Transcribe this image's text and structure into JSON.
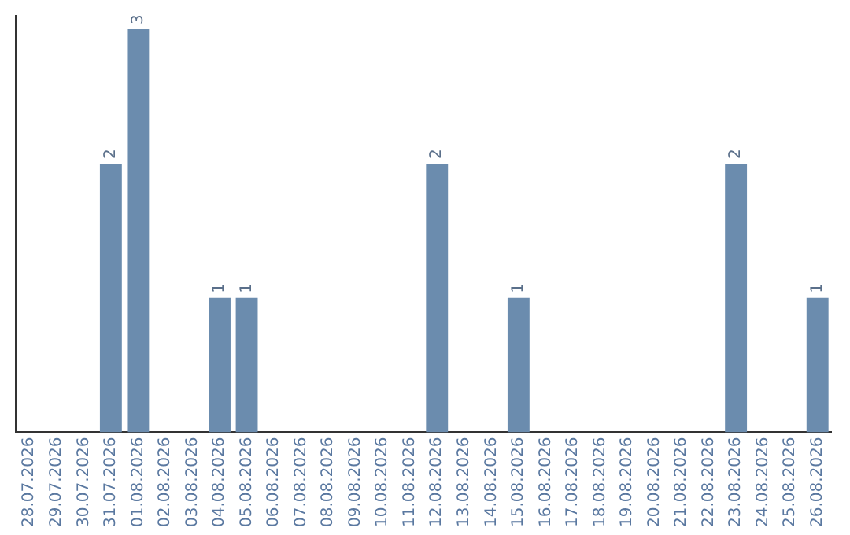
{
  "chart_data": {
    "type": "bar",
    "categories": [
      "28.07.2026",
      "29.07.2026",
      "30.07.2026",
      "31.07.2026",
      "01.08.2026",
      "02.08.2026",
      "03.08.2026",
      "04.08.2026",
      "05.08.2026",
      "06.08.2026",
      "07.08.2026",
      "08.08.2026",
      "09.08.2026",
      "10.08.2026",
      "11.08.2026",
      "12.08.2026",
      "13.08.2026",
      "14.08.2026",
      "15.08.2026",
      "16.08.2026",
      "17.08.2026",
      "18.08.2026",
      "19.08.2026",
      "20.08.2026",
      "21.08.2026",
      "22.08.2026",
      "23.08.2026",
      "24.08.2026",
      "25.08.2026",
      "26.08.2026"
    ],
    "values": [
      0,
      0,
      0,
      2,
      3,
      0,
      0,
      1,
      1,
      0,
      0,
      0,
      0,
      0,
      0,
      2,
      0,
      0,
      1,
      0,
      0,
      0,
      0,
      0,
      0,
      0,
      2,
      0,
      0,
      1
    ],
    "color": "#6b8cae",
    "ylim": [
      0,
      3.1
    ],
    "tick_labels": "x",
    "grid": false,
    "legend": false,
    "value_labels": [
      null,
      null,
      null,
      "2",
      "3",
      null,
      null,
      "1",
      "1",
      null,
      null,
      null,
      null,
      null,
      null,
      "2",
      null,
      null,
      "1",
      null,
      null,
      null,
      null,
      null,
      null,
      null,
      "2",
      null,
      null,
      "1"
    ]
  }
}
